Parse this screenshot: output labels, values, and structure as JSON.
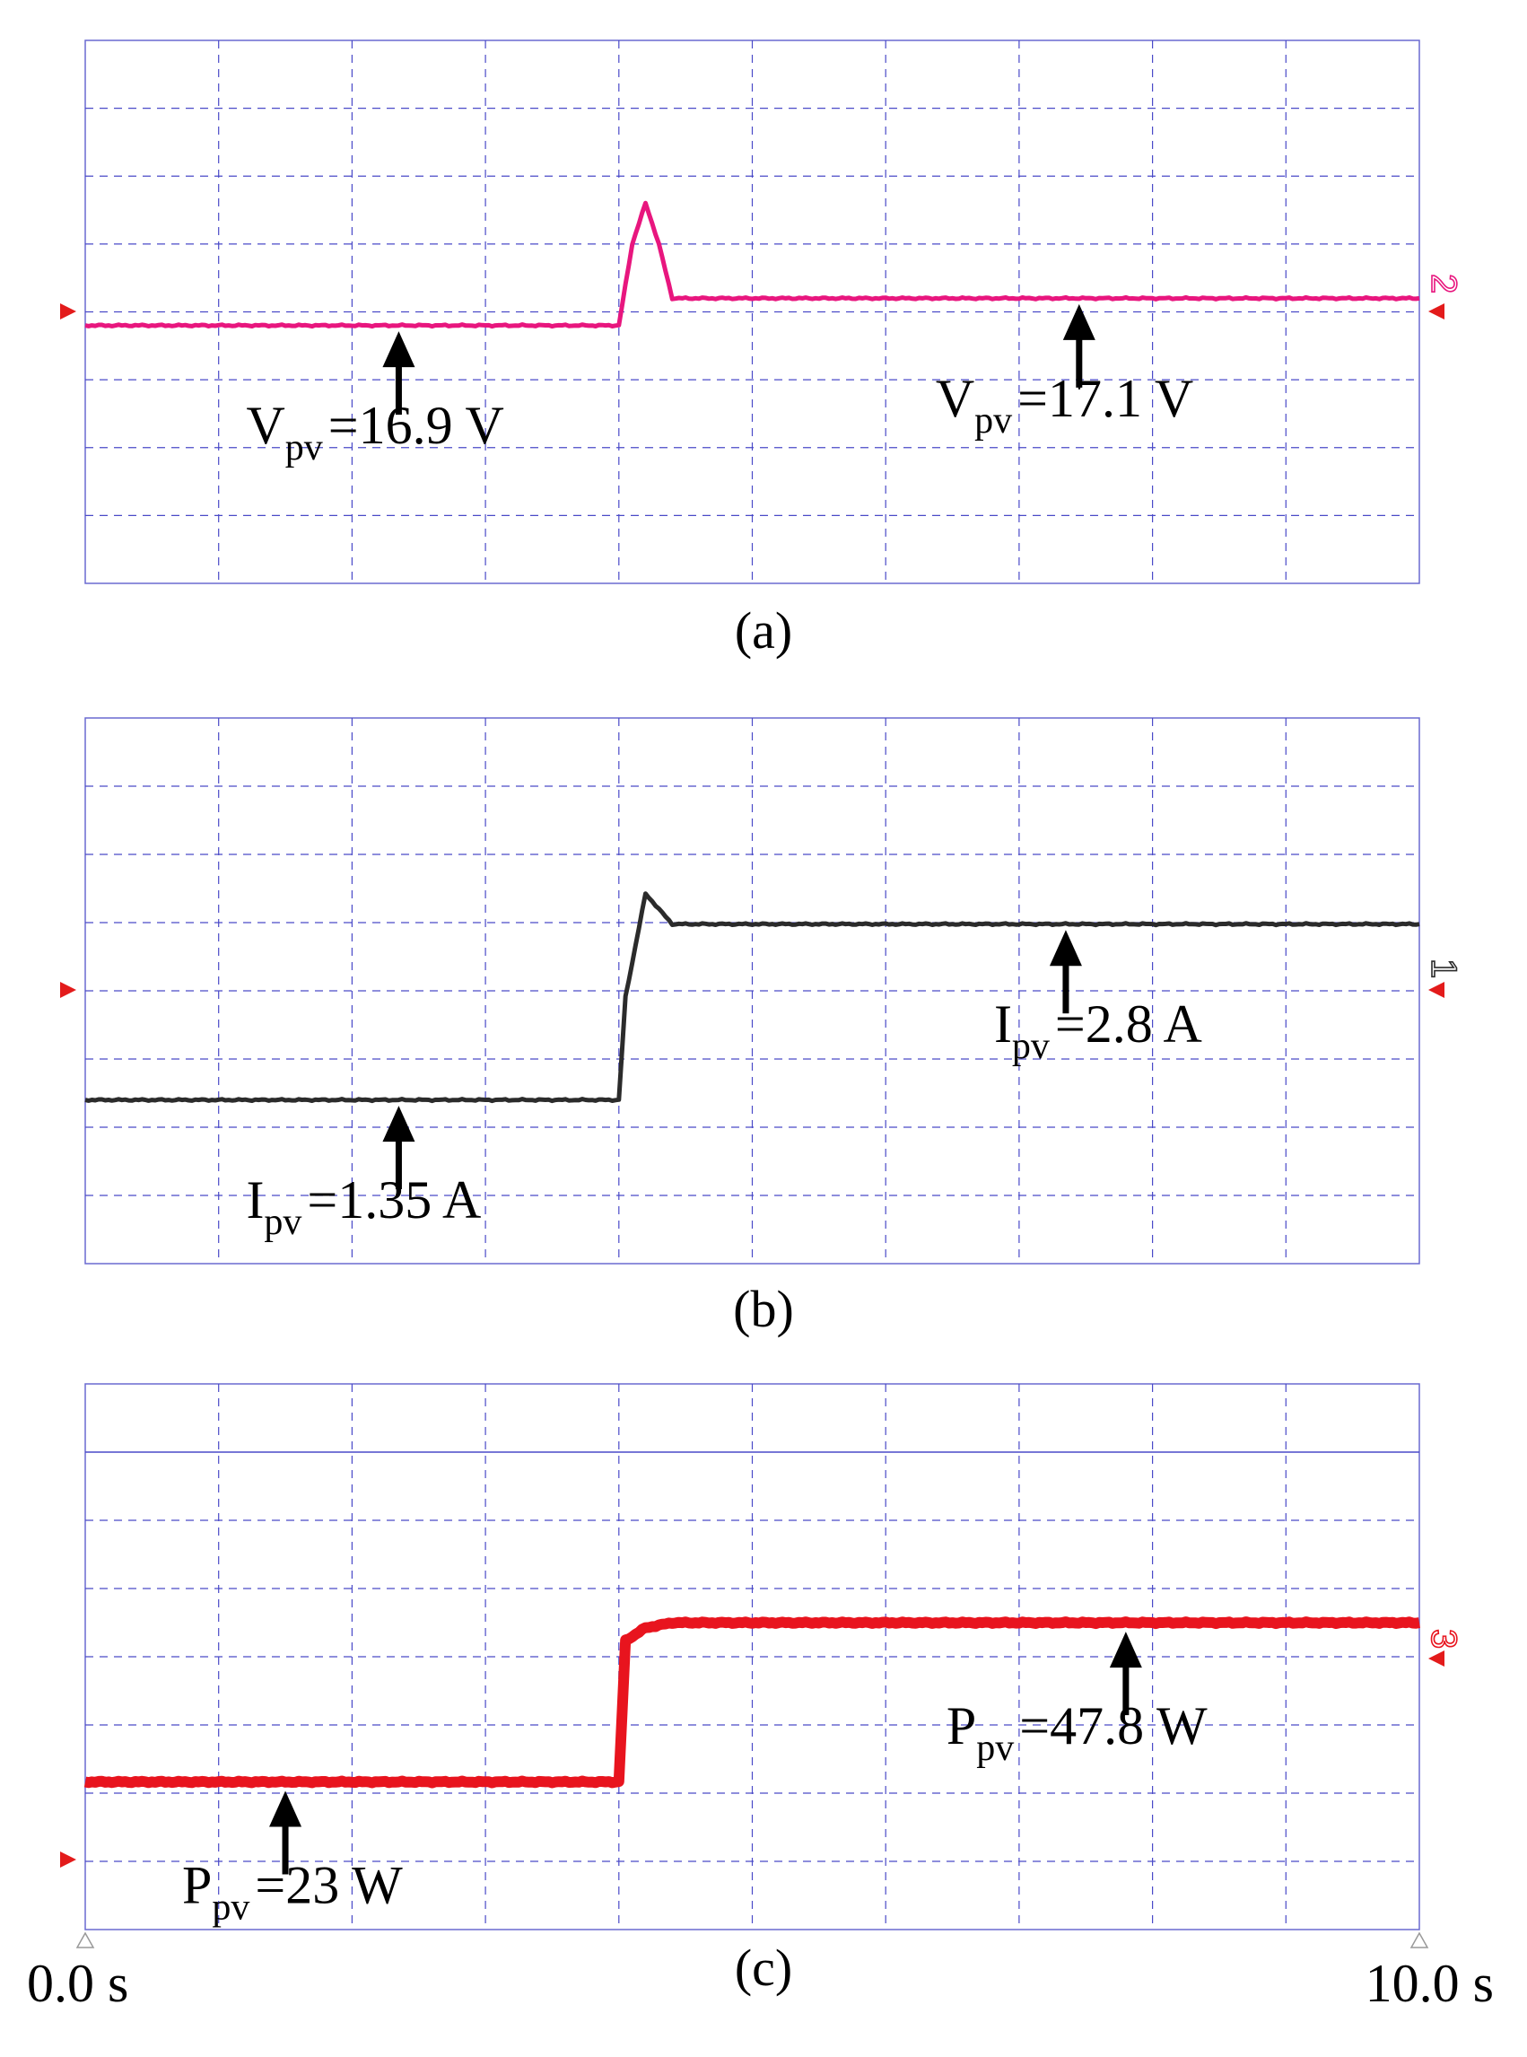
{
  "chart_data": [
    {
      "type": "line",
      "panel_label": "(a)",
      "channel_marker": "2",
      "color": "#e8167e",
      "x": [
        0.0,
        4.0,
        4.1,
        4.2,
        4.3,
        4.4,
        10.0
      ],
      "series": [
        {
          "values": [
            16.9,
            16.9,
            17.5,
            17.8,
            17.5,
            17.1,
            17.1
          ]
        }
      ],
      "annotations": [
        {
          "label": "V",
          "sub": "pv",
          "value": "=16.9 V",
          "at_x": 2.35
        },
        {
          "label": "V",
          "sub": "pv",
          "value": "=17.1 V",
          "at_x": 7.45
        }
      ],
      "grid": true
    },
    {
      "type": "line",
      "panel_label": "(b)",
      "channel_marker": "1",
      "color": "#2b2b2b",
      "x": [
        0.0,
        4.0,
        4.05,
        4.2,
        4.4,
        10.0
      ],
      "series": [
        {
          "values": [
            1.35,
            1.35,
            2.2,
            3.05,
            2.8,
            2.8
          ]
        }
      ],
      "annotations": [
        {
          "label": "I",
          "sub": "pv",
          "value": "=1.35 A",
          "at_x": 2.35
        },
        {
          "label": "I",
          "sub": "pv",
          "value": "=2.8 A",
          "at_x": 7.35
        }
      ],
      "grid": true
    },
    {
      "type": "line",
      "panel_label": "(c)",
      "channel_marker": "3",
      "color": "#e8141e",
      "x": [
        0.0,
        4.0,
        4.05,
        4.2,
        4.4,
        10.0
      ],
      "series": [
        {
          "values": [
            23,
            23,
            45,
            47,
            47.8,
            47.8
          ]
        }
      ],
      "annotations": [
        {
          "label": "P",
          "sub": "pv",
          "value": "=23 W",
          "at_x": 1.5
        },
        {
          "label": "P",
          "sub": "pv",
          "value": "=47.8 W",
          "at_x": 7.8
        }
      ],
      "x_start_label": "0.0 s",
      "x_end_label": "10.0 s",
      "xlim": [
        0,
        10
      ],
      "grid": true
    }
  ]
}
